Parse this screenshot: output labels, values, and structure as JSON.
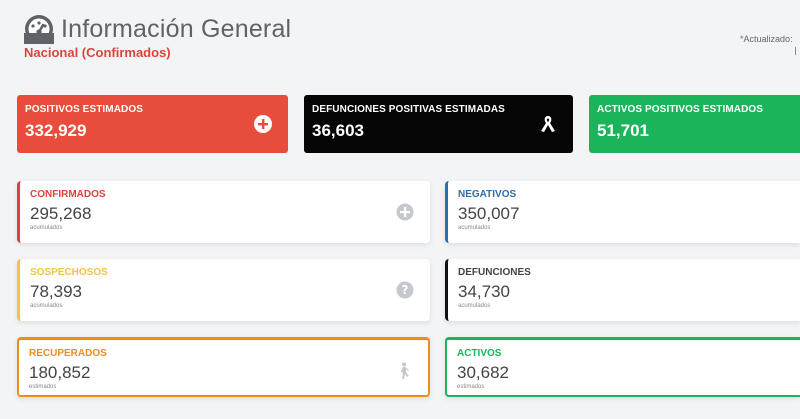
{
  "header": {
    "title": "Información General",
    "subtitle": "Nacional (Confirmados)",
    "updated_label": "*Actualizado: "
  },
  "top_cards": [
    {
      "label": "POSITIVOS ESTIMADOS",
      "value": "332,929",
      "icon": "plus-circle-icon",
      "color": "#e74c3c"
    },
    {
      "label": "DEFUNCIONES POSITIVAS ESTIMADAS",
      "value": "36,603",
      "icon": "ribbon-icon",
      "color": "#050505"
    },
    {
      "label": "ACTIVOS POSITIVOS ESTIMADOS",
      "value": "51,701",
      "icon": "",
      "color": "#1cb45a"
    }
  ],
  "stats": {
    "confirmados": {
      "label": "CONFIRMADOS",
      "value": "295,268",
      "sub": "acumulados",
      "color": "#d9453a",
      "icon": "plus-circle-icon"
    },
    "negativos": {
      "label": "NEGATIVOS",
      "value": "350,007",
      "sub": "acumulados",
      "color": "#2c6db5"
    },
    "sospechosos": {
      "label": "SOSPECHOSOS",
      "value": "78,393",
      "sub": "acumulados",
      "color": "#f5c242",
      "icon": "question-circle-icon"
    },
    "defunciones": {
      "label": "DEFUNCIONES",
      "value": "34,730",
      "sub": "acumulados",
      "color": "#111111"
    },
    "recuperados": {
      "label": "RECUPERADOS",
      "value": "180,852",
      "sub": "estimados",
      "color": "#f08c1a",
      "icon": "walking-person-icon"
    },
    "activos": {
      "label": "ACTIVOS",
      "value": "30,682",
      "sub": "estimados",
      "color": "#1cb45a"
    }
  }
}
